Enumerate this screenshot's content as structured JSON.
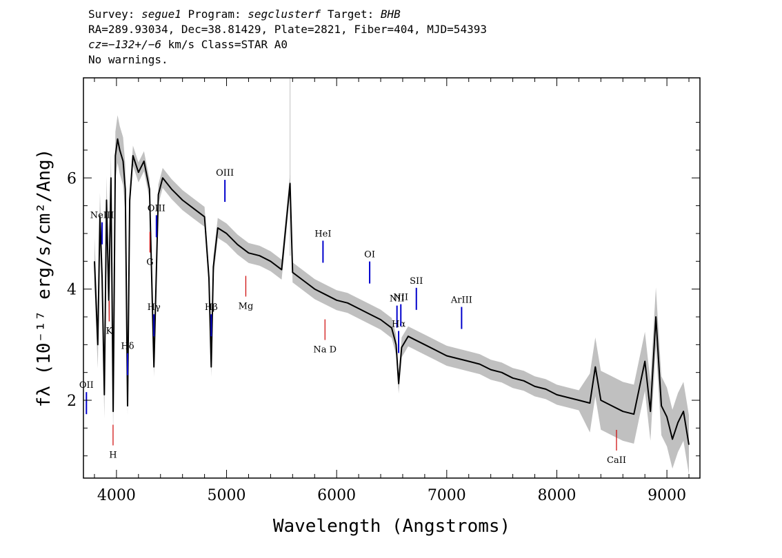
{
  "header": {
    "survey_label": "Survey:",
    "survey": "segue1",
    "program_label": "Program:",
    "program": "segclusterf",
    "target_label": "Target:",
    "target": "BHB",
    "line2": "RA=289.93034, Dec=38.81429, Plate=2821, Fiber=404, MJD=54393",
    "cz": "cz=−132+/−6",
    "cz_rest": " km/s Class=STAR A0",
    "warnings": "No warnings."
  },
  "chart_data": {
    "type": "line",
    "xlabel": "Wavelength (Angstroms)",
    "ylabel": "fλ (10⁻¹⁷ erg/s/cm²/Ang)",
    "xlim": [
      3700,
      9300
    ],
    "ylim": [
      0.6,
      7.8
    ],
    "x_ticks": [
      4000,
      5000,
      6000,
      7000,
      8000,
      9000
    ],
    "y_ticks": [
      2,
      4,
      6
    ],
    "grid": false,
    "colors": {
      "flux": "#000000",
      "error": "#c0c0c0",
      "emission": "#0000cc",
      "absorption": "#cc0000"
    },
    "series": [
      {
        "x": [
          3800,
          3830,
          3850,
          3870,
          3890,
          3910,
          3930,
          3950,
          3970,
          3990,
          4010,
          4030,
          4060,
          4080,
          4101,
          4120,
          4150,
          4200,
          4250,
          4300,
          4340,
          4380,
          4420,
          4500,
          4600,
          4700,
          4800,
          4840,
          4861,
          4880,
          4920,
          5000,
          5100,
          5200,
          5300,
          5400,
          5500,
          5577,
          5600,
          5700,
          5800,
          5900,
          6000,
          6100,
          6200,
          6300,
          6400,
          6500,
          6540,
          6563,
          6590,
          6650,
          6700,
          6800,
          6900,
          7000,
          7100,
          7200,
          7300,
          7400,
          7500,
          7600,
          7700,
          7800,
          7900,
          8000,
          8100,
          8200,
          8300,
          8350,
          8400,
          8500,
          8600,
          8700,
          8800,
          8850,
          8900,
          8950,
          9000,
          9050,
          9100,
          9150,
          9200
        ],
        "y": [
          4.5,
          3.0,
          5.3,
          4.2,
          2.1,
          5.6,
          3.8,
          6.0,
          1.8,
          6.4,
          6.7,
          6.5,
          6.3,
          5.8,
          1.9,
          5.6,
          6.4,
          6.1,
          6.3,
          5.8,
          2.6,
          5.7,
          6.0,
          5.8,
          5.6,
          5.45,
          5.3,
          4.2,
          2.6,
          4.4,
          5.1,
          5.0,
          4.8,
          4.65,
          4.6,
          4.5,
          4.35,
          5.9,
          4.3,
          4.15,
          4.0,
          3.9,
          3.8,
          3.75,
          3.65,
          3.55,
          3.45,
          3.3,
          3.0,
          2.3,
          2.95,
          3.15,
          3.1,
          3.0,
          2.9,
          2.8,
          2.75,
          2.7,
          2.65,
          2.55,
          2.5,
          2.4,
          2.35,
          2.25,
          2.2,
          2.1,
          2.05,
          2.0,
          1.95,
          2.6,
          2.0,
          1.9,
          1.8,
          1.75,
          2.7,
          1.8,
          3.5,
          1.9,
          1.7,
          1.3,
          1.6,
          1.8,
          1.2
        ]
      }
    ],
    "line_labels": [
      {
        "text": "OII",
        "wavelength": 3727,
        "kind": "emission"
      },
      {
        "text": "NeIII",
        "wavelength": 3869,
        "kind": "emission"
      },
      {
        "text": "Hδ",
        "wavelength": 4101,
        "kind": "emission"
      },
      {
        "text": "Hγ",
        "wavelength": 4340,
        "kind": "emission"
      },
      {
        "text": "OIII",
        "wavelength": 4363,
        "kind": "emission"
      },
      {
        "text": "Hβ",
        "wavelength": 4861,
        "kind": "emission"
      },
      {
        "text": "OIII",
        "wavelength": 4985,
        "kind": "emission"
      },
      {
        "text": "HeI",
        "wavelength": 5876,
        "kind": "emission"
      },
      {
        "text": "OI",
        "wavelength": 6300,
        "kind": "emission"
      },
      {
        "text": "NII",
        "wavelength": 6548,
        "kind": "emission"
      },
      {
        "text": "Hα",
        "wavelength": 6563,
        "kind": "emission"
      },
      {
        "text": "NII",
        "wavelength": 6583,
        "kind": "emission"
      },
      {
        "text": "SII",
        "wavelength": 6724,
        "kind": "emission"
      },
      {
        "text": "ArIII",
        "wavelength": 7135,
        "kind": "emission"
      },
      {
        "text": "K",
        "wavelength": 3934,
        "kind": "absorption"
      },
      {
        "text": "H",
        "wavelength": 3969,
        "kind": "absorption"
      },
      {
        "text": "G",
        "wavelength": 4304,
        "kind": "absorption"
      },
      {
        "text": "Mg",
        "wavelength": 5175,
        "kind": "absorption"
      },
      {
        "text": "Na D",
        "wavelength": 5894,
        "kind": "absorption"
      },
      {
        "text": "CaII",
        "wavelength": 8542,
        "kind": "absorption"
      }
    ]
  }
}
